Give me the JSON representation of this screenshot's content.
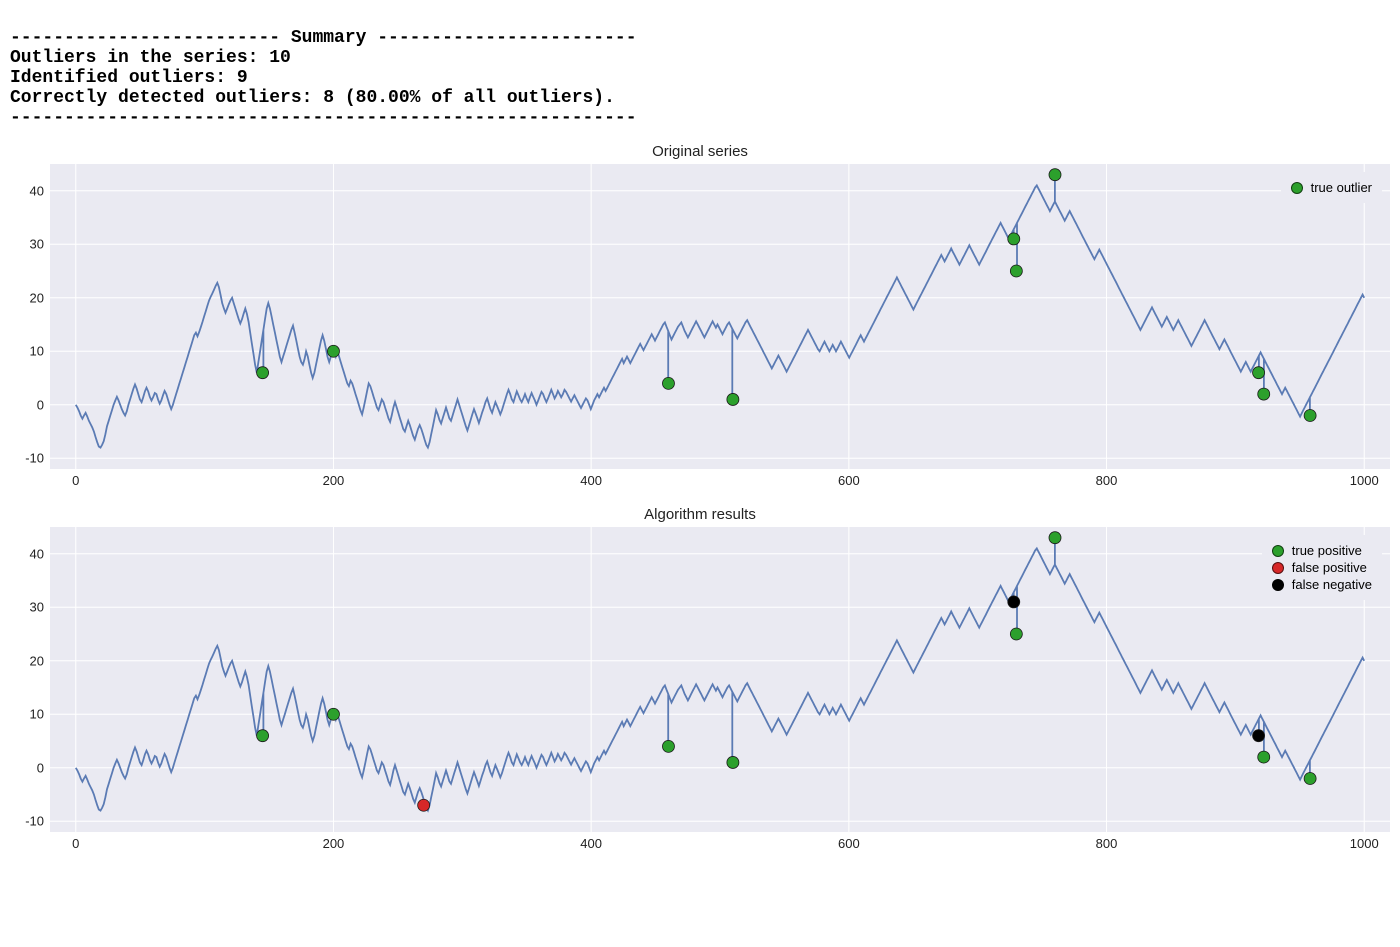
{
  "summary": {
    "header_line": "------------------------- Summary ------------------------",
    "lines": [
      "Outliers in the series: 10",
      "Identified outliers: 9",
      "Correctly detected outliers: 8 (80.00% of all outliers)."
    ],
    "footer_line": "----------------------------------------------------------",
    "fontsize": 18,
    "font_family": "Courier New"
  },
  "shared": {
    "x_range": [
      -20,
      1020
    ],
    "y_range": [
      -12,
      45
    ],
    "x_ticks": [
      0,
      200,
      400,
      600,
      800,
      1000
    ],
    "y_ticks": [
      -10,
      0,
      10,
      20,
      30,
      40
    ],
    "line_color": "#5b7bb4",
    "line_width": 1.8,
    "grid_color": "#ffffff",
    "grid_width": 1,
    "background_color": "#eaeaf2",
    "axis_fontsize": 13,
    "marker_radius": 6,
    "marker_stroke": "#1a1a1a",
    "series_y": [
      0,
      -0.5,
      -1.2,
      -2,
      -2.6,
      -2,
      -1.5,
      -2.2,
      -3,
      -3.6,
      -4.2,
      -5,
      -6,
      -7,
      -7.8,
      -8,
      -7.5,
      -6.8,
      -5.5,
      -4,
      -3,
      -2,
      -1,
      0,
      0.8,
      1.5,
      0.8,
      0,
      -0.8,
      -1.5,
      -2,
      -1.2,
      0,
      1,
      2,
      3,
      3.8,
      3,
      2,
      1,
      0.5,
      1.4,
      2.5,
      3.2,
      2.5,
      1.5,
      0.8,
      1.4,
      2.2,
      2,
      1,
      0.2,
      0.8,
      1.8,
      2.6,
      2,
      1,
      0,
      -0.8,
      0,
      1,
      2,
      3,
      4,
      5,
      6,
      7,
      8,
      9,
      10,
      11,
      12,
      13,
      13.5,
      12.8,
      13.6,
      14.5,
      15.5,
      16.5,
      17.5,
      18.5,
      19.5,
      20.2,
      20.8,
      21.5,
      22.2,
      22.8,
      22,
      20.5,
      19,
      18,
      17.2,
      18,
      18.8,
      19.5,
      20,
      19,
      18,
      17,
      16,
      15.2,
      16,
      17,
      18,
      17,
      15.5,
      13.5,
      11.5,
      9.5,
      7.5,
      6,
      8,
      10,
      12,
      14,
      16,
      18,
      19,
      18,
      16.5,
      15,
      13.5,
      12,
      10.5,
      9,
      8,
      9,
      10,
      11,
      12,
      13,
      14,
      14.8,
      13.5,
      12,
      10.5,
      9,
      8,
      7.5,
      8.5,
      10,
      9,
      7.5,
      6,
      5,
      6,
      7.5,
      9,
      10.5,
      12,
      13,
      12,
      10.5,
      9,
      8,
      9,
      10,
      10,
      9,
      10,
      9,
      8,
      7,
      6,
      5,
      4,
      3.5,
      4.5,
      4,
      3,
      2,
      1,
      0,
      -1,
      -1.8,
      -0.5,
      1,
      2.5,
      4,
      3.5,
      2.5,
      1.5,
      0.5,
      -0.5,
      -1,
      0,
      1,
      0.5,
      -0.5,
      -1.5,
      -2.5,
      -3.2,
      -2,
      -0.5,
      0.5,
      -0.5,
      -1.5,
      -2.5,
      -3.5,
      -4.5,
      -5,
      -4,
      -3,
      -3.8,
      -4.8,
      -5.8,
      -6.5,
      -5.5,
      -4.5,
      -3.8,
      -4.5,
      -5.5,
      -6.5,
      -7.5,
      -8,
      -7,
      -5.5,
      -4,
      -2.5,
      -1,
      -1.8,
      -2.8,
      -3.5,
      -2.5,
      -1.5,
      -0.5,
      -1.5,
      -2.5,
      -3,
      -2,
      -1,
      0,
      1,
      0,
      -1,
      -2,
      -3,
      -4,
      -4.8,
      -3.8,
      -2.8,
      -1.8,
      -0.8,
      -1.6,
      -2.5,
      -3.4,
      -2.4,
      -1.4,
      -0.5,
      0.5,
      1.2,
      0.2,
      -0.8,
      -1.5,
      -0.5,
      0.5,
      -0.2,
      -1,
      -1.8,
      -1,
      0,
      1,
      2,
      2.8,
      2,
      1,
      0.5,
      1.5,
      2.5,
      1.8,
      1,
      0.5,
      1.2,
      2,
      1.2,
      0.5,
      1.4,
      2.2,
      1.5,
      0.8,
      0,
      0.8,
      1.6,
      2.4,
      2,
      1.2,
      0.5,
      1.2,
      2,
      2.8,
      2,
      1.2,
      1.8,
      2.6,
      2,
      1.4,
      2,
      2.8,
      2.4,
      1.8,
      1.2,
      0.6,
      1.2,
      1.8,
      1.2,
      0.6,
      0,
      -0.6,
      0,
      0.6,
      1.2,
      0.8,
      0,
      -0.8,
      0,
      0.8,
      1.4,
      2,
      1.4,
      2,
      2.6,
      3.2,
      2.6,
      3.2,
      3.8,
      4.4,
      5,
      5.6,
      6.2,
      6.8,
      7.4,
      8,
      8.6,
      7.8,
      8.4,
      9,
      8.4,
      7.8,
      8.4,
      9,
      9.6,
      10.2,
      10.8,
      11.4,
      10.8,
      10.2,
      10.8,
      11.4,
      12,
      12.6,
      13.2,
      12.6,
      12,
      12.6,
      13.2,
      13.8,
      14.4,
      15,
      15.4,
      14.6,
      13.8,
      13,
      12.2,
      12.8,
      13.4,
      14,
      14.6,
      15,
      15.4,
      14.6,
      13.8,
      13.2,
      12.6,
      13.2,
      13.8,
      14.4,
      15,
      15.6,
      15,
      14.4,
      13.8,
      13.2,
      12.6,
      13.2,
      13.8,
      14.4,
      15,
      15.6,
      15,
      14.4,
      15,
      14.4,
      13.8,
      13.2,
      13.8,
      14.4,
      15,
      15.4,
      14.8,
      14.2,
      13.6,
      13,
      12.4,
      13,
      13.6,
      14.2,
      14.8,
      15.4,
      15.8,
      15.2,
      14.6,
      14,
      13.4,
      12.8,
      12.2,
      11.6,
      11,
      10.4,
      9.8,
      9.2,
      8.6,
      8,
      7.4,
      6.8,
      7.4,
      8,
      8.6,
      9.2,
      8.6,
      8,
      7.4,
      6.8,
      6.2,
      6.8,
      7.4,
      8,
      8.6,
      9.2,
      9.8,
      10.4,
      11,
      11.6,
      12.2,
      12.8,
      13.4,
      14,
      13.4,
      12.8,
      12.2,
      11.6,
      11,
      10.4,
      10,
      10.6,
      11.2,
      11.8,
      11.2,
      10.6,
      10,
      10.6,
      11.2,
      10.6,
      10,
      10.6,
      11.2,
      11.8,
      11.2,
      10.6,
      10,
      9.4,
      8.8,
      9.4,
      10,
      10.6,
      11.2,
      11.8,
      12.4,
      13,
      12.4,
      11.8,
      12.4,
      13,
      13.6,
      14.2,
      14.8,
      15.4,
      16,
      16.6,
      17.2,
      17.8,
      18.4,
      19,
      19.6,
      20.2,
      20.8,
      21.4,
      22,
      22.6,
      23.2,
      23.8,
      23.2,
      22.6,
      22,
      21.4,
      20.8,
      20.2,
      19.6,
      19,
      18.4,
      17.8,
      18.4,
      19,
      19.6,
      20.2,
      20.8,
      21.4,
      22,
      22.6,
      23.2,
      23.8,
      24.4,
      25,
      25.6,
      26.2,
      26.8,
      27.4,
      28,
      27.4,
      26.8,
      27.4,
      28,
      28.6,
      29.2,
      28.6,
      28,
      27.4,
      26.8,
      26.2,
      26.8,
      27.4,
      28,
      28.6,
      29.2,
      29.8,
      29.2,
      28.6,
      28,
      27.4,
      26.8,
      26.2,
      26.8,
      27.4,
      28,
      28.6,
      29.2,
      29.8,
      30.4,
      31,
      31.6,
      32.2,
      32.8,
      33.4,
      34,
      33.4,
      32.8,
      32.2,
      31.6,
      31,
      31.6,
      32.2,
      32.8,
      33.4,
      34,
      34.6,
      35.2,
      35.8,
      36.4,
      37,
      37.6,
      38.2,
      38.8,
      39.4,
      40,
      40.6,
      41,
      40.4,
      39.8,
      39.2,
      38.6,
      38,
      37.4,
      36.8,
      36.2,
      36.8,
      37.4,
      38,
      37.4,
      36.8,
      36.2,
      35.6,
      35,
      34.4,
      35,
      35.6,
      36.2,
      35.6,
      35,
      34.4,
      33.8,
      33.2,
      32.6,
      32,
      31.4,
      30.8,
      30.2,
      29.6,
      29,
      28.4,
      27.8,
      27.2,
      27.8,
      28.4,
      29,
      28.4,
      27.8,
      27.2,
      26.6,
      26,
      25.4,
      24.8,
      24.2,
      23.6,
      23,
      22.4,
      21.8,
      21.2,
      20.6,
      20,
      19.4,
      18.8,
      18.2,
      17.6,
      17,
      16.4,
      15.8,
      15.2,
      14.6,
      14,
      14.6,
      15.2,
      15.8,
      16.4,
      17,
      17.6,
      18.2,
      17.6,
      17,
      16.4,
      15.8,
      15.2,
      14.6,
      15.2,
      15.8,
      16.4,
      15.8,
      15.2,
      14.6,
      14,
      14.6,
      15.2,
      15.8,
      15.2,
      14.6,
      14,
      13.4,
      12.8,
      12.2,
      11.6,
      11,
      11.6,
      12.2,
      12.8,
      13.4,
      14,
      14.6,
      15.2,
      15.8,
      15.2,
      14.6,
      14,
      13.4,
      12.8,
      12.2,
      11.6,
      11,
      10.4,
      11,
      11.6,
      12.2,
      11.6,
      11,
      10.4,
      9.8,
      9.2,
      8.6,
      8,
      7.4,
      6.8,
      6.2,
      6.8,
      7.4,
      8,
      7.4,
      6.8,
      6.2,
      6.8,
      7.4,
      8,
      8.6,
      9.2,
      9.8,
      9.2,
      8.6,
      8,
      7.4,
      6.8,
      6.2,
      5.6,
      5,
      4.4,
      3.8,
      3.2,
      2.6,
      2,
      2.6,
      3.2,
      2.6,
      2,
      1.4,
      0.8,
      0.2,
      -0.4,
      -1,
      -1.6,
      -2.2,
      -1.6,
      -1,
      -0.4,
      0.2,
      0.8,
      1.4,
      2,
      2.6,
      3.2,
      3.8,
      4.4,
      5,
      5.6,
      6.2,
      6.8,
      7.4,
      8,
      8.6,
      9.2,
      9.8,
      10.4,
      11,
      11.6,
      12.2,
      12.8,
      13.4,
      14,
      14.6,
      15.2,
      15.8,
      16.4,
      17,
      17.6,
      18.2,
      18.8,
      19.4,
      20,
      20.6,
      20
    ],
    "outlier_points": [
      {
        "x": 145,
        "y": 6
      },
      {
        "x": 200,
        "y": 10
      },
      {
        "x": 460,
        "y": 4
      },
      {
        "x": 510,
        "y": 1
      },
      {
        "x": 728,
        "y": 31
      },
      {
        "x": 730,
        "y": 25
      },
      {
        "x": 760,
        "y": 43
      },
      {
        "x": 918,
        "y": 6
      },
      {
        "x": 922,
        "y": 2
      },
      {
        "x": 958,
        "y": -2
      }
    ]
  },
  "chart1": {
    "title": "Original series",
    "legend_items": [
      {
        "color": "#2ca02c",
        "label": "true outlier"
      }
    ],
    "markers": [
      {
        "x": 145,
        "y": 6,
        "color": "#2ca02c"
      },
      {
        "x": 200,
        "y": 10,
        "color": "#2ca02c"
      },
      {
        "x": 460,
        "y": 4,
        "color": "#2ca02c"
      },
      {
        "x": 510,
        "y": 1,
        "color": "#2ca02c"
      },
      {
        "x": 728,
        "y": 31,
        "color": "#2ca02c"
      },
      {
        "x": 730,
        "y": 25,
        "color": "#2ca02c"
      },
      {
        "x": 760,
        "y": 43,
        "color": "#2ca02c"
      },
      {
        "x": 918,
        "y": 6,
        "color": "#2ca02c"
      },
      {
        "x": 922,
        "y": 2,
        "color": "#2ca02c"
      },
      {
        "x": 958,
        "y": -2,
        "color": "#2ca02c"
      }
    ]
  },
  "chart2": {
    "title": "Algorithm results",
    "legend_items": [
      {
        "color": "#2ca02c",
        "label": "true positive"
      },
      {
        "color": "#d62728",
        "label": "false positive"
      },
      {
        "color": "#000000",
        "label": "false negative"
      }
    ],
    "markers": [
      {
        "x": 145,
        "y": 6,
        "color": "#2ca02c"
      },
      {
        "x": 200,
        "y": 10,
        "color": "#2ca02c"
      },
      {
        "x": 270,
        "y": -7,
        "color": "#d62728"
      },
      {
        "x": 460,
        "y": 4,
        "color": "#2ca02c"
      },
      {
        "x": 510,
        "y": 1,
        "color": "#2ca02c"
      },
      {
        "x": 728,
        "y": 31,
        "color": "#000000"
      },
      {
        "x": 730,
        "y": 25,
        "color": "#2ca02c"
      },
      {
        "x": 760,
        "y": 43,
        "color": "#2ca02c"
      },
      {
        "x": 918,
        "y": 6,
        "color": "#000000"
      },
      {
        "x": 922,
        "y": 2,
        "color": "#2ca02c"
      },
      {
        "x": 958,
        "y": -2,
        "color": "#2ca02c"
      }
    ]
  }
}
